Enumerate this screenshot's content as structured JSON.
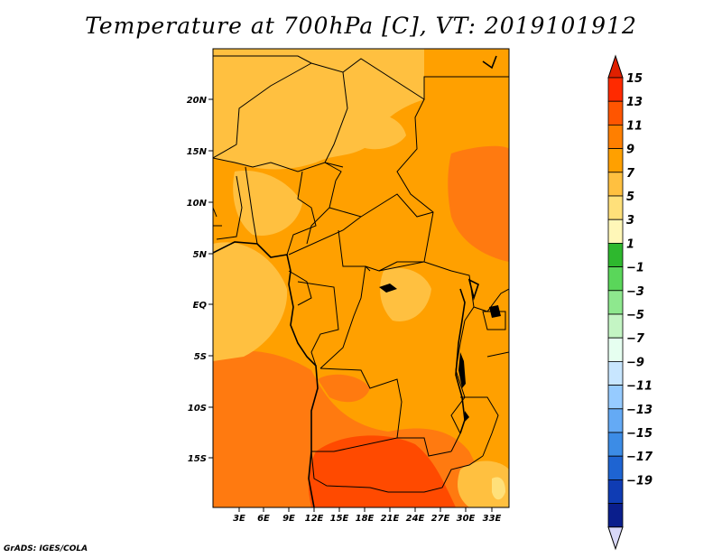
{
  "title": "Temperature at 700hPa [C], VT: 2019101912",
  "credit": "GrADS: IGES/COLA",
  "map": {
    "lat_labels": [
      "20N",
      "15N",
      "10N",
      "5N",
      "EQ",
      "5S",
      "10S",
      "15S"
    ],
    "lon_labels": [
      "3E",
      "6E",
      "9E",
      "12E",
      "15E",
      "18E",
      "21E",
      "24E",
      "27E",
      "30E",
      "33E"
    ],
    "colors": {
      "c5_7": "#ffe07a",
      "c7_9": "#ffc040",
      "c9_11": "#ffa000",
      "c11_13": "#ff7a10",
      "c13_15": "#ff4a00"
    }
  },
  "colorbar": {
    "labels": [
      "15",
      "13",
      "11",
      "9",
      "7",
      "5",
      "3",
      "1",
      "−1",
      "−3",
      "−5",
      "−7",
      "−9",
      "−11",
      "−13",
      "−15",
      "−17",
      "−19"
    ],
    "colors": [
      "#ff2a00",
      "#ff5500",
      "#ff7f00",
      "#ffa000",
      "#ffc040",
      "#ffe07a",
      "#fff7b8",
      "#2eb82e",
      "#5ad65a",
      "#8ee88e",
      "#c4f5c4",
      "#e6fff0",
      "#c8e6ff",
      "#96cbff",
      "#64aaf5",
      "#3c8ce6",
      "#1e64d2",
      "#0f3cb4",
      "#0a1e8c"
    ],
    "top_arrow_color": "#e02000",
    "bottom_arrow_color": "#d8d8f8"
  }
}
